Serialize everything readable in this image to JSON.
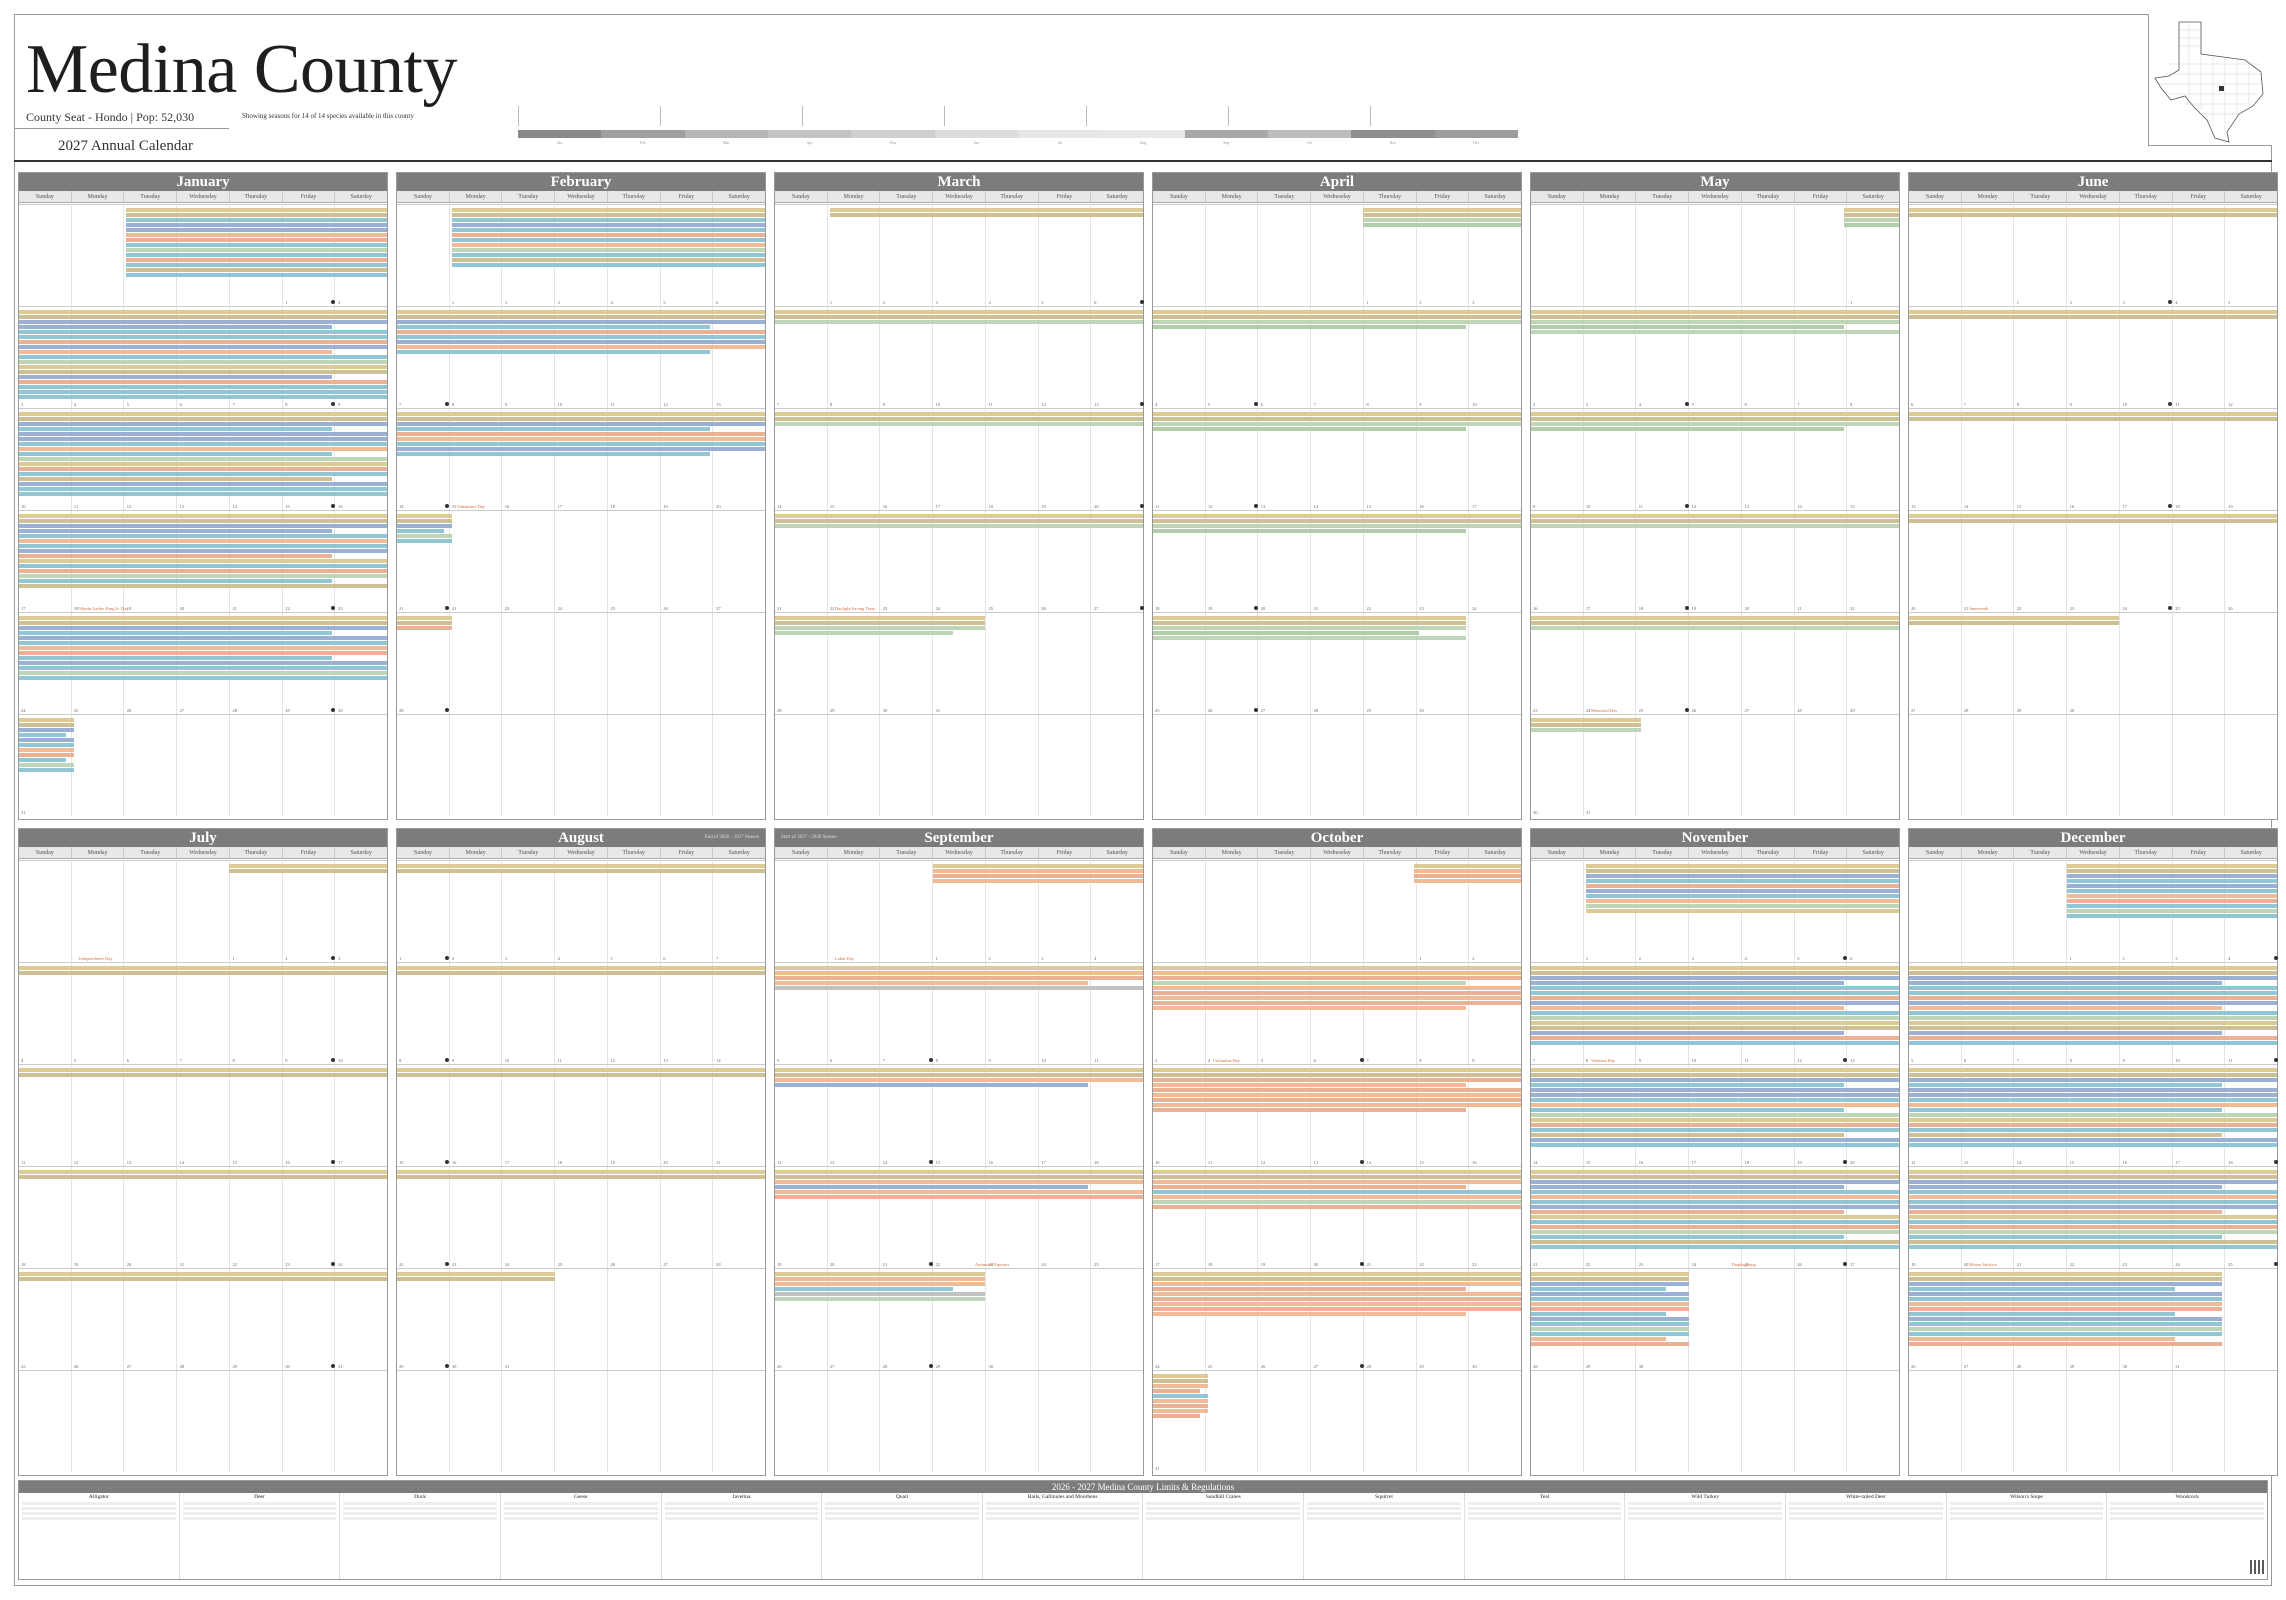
{
  "header": {
    "county": "Medina County",
    "subtitle": "County Seat - Hondo  |  Pop: 52,030",
    "calendar_title": "2027 Annual Calendar",
    "showing": "Showing seasons for 14 of 14 species available in this county"
  },
  "dows": [
    "Sunday",
    "Monday",
    "Tuesday",
    "Wednesday",
    "Thursday",
    "Friday",
    "Saturday"
  ],
  "months": [
    {
      "name": "January",
      "note_right": "",
      "note_left": ""
    },
    {
      "name": "February",
      "note_right": "",
      "note_left": ""
    },
    {
      "name": "March",
      "note_right": "",
      "note_left": ""
    },
    {
      "name": "April",
      "note_right": "",
      "note_left": ""
    },
    {
      "name": "May",
      "note_right": "",
      "note_left": ""
    },
    {
      "name": "June",
      "note_right": "",
      "note_left": ""
    },
    {
      "name": "July",
      "note_right": "",
      "note_left": ""
    },
    {
      "name": "August",
      "note_right": "End of 2026 - 2027 Season",
      "note_left": ""
    },
    {
      "name": "September",
      "note_right": "",
      "note_left": "Start of 2027 - 2028 Season"
    },
    {
      "name": "October",
      "note_right": "",
      "note_left": ""
    },
    {
      "name": "November",
      "note_right": "",
      "note_left": ""
    },
    {
      "name": "December",
      "note_right": "",
      "note_left": ""
    }
  ],
  "holidays": {
    "January": [
      {
        "week": 3,
        "text": "Martin Luther King Jr. Day"
      }
    ],
    "February": [
      {
        "week": 2,
        "text": "Valentine's Day"
      }
    ],
    "March": [
      {
        "week": 3,
        "text": "Daylight Saving Time"
      }
    ],
    "April": [],
    "May": [
      {
        "week": 4,
        "text": "Memorial Day"
      }
    ],
    "June": [
      {
        "week": 3,
        "text": "Juneteenth"
      }
    ],
    "July": [
      {
        "week": 0,
        "text": "Independence Day"
      }
    ],
    "August": [],
    "September": [
      {
        "week": 0,
        "text": "Labor Day"
      },
      {
        "week": 3,
        "text": "Autumnal Equinox"
      }
    ],
    "October": [
      {
        "week": 1,
        "text": "Columbus Day"
      }
    ],
    "November": [
      {
        "week": 1,
        "text": "Veterans Day"
      },
      {
        "week": 3,
        "text": "Thanksgiving"
      }
    ],
    "December": [
      {
        "week": 3,
        "text": "Winter Solstice"
      }
    ]
  },
  "colors": {
    "dove": "#d9c58a",
    "squirrel": "#c9b98a",
    "deer": "#8fa8d0",
    "duck": "#86c0cf",
    "quail": "#e8a88a",
    "turkey": "#b8d0b0",
    "teal": "#f0b48c",
    "gallinule": "#a8c8a0",
    "grey": "#bbbbbb"
  },
  "regulations": {
    "title": "2026 - 2027  Medina County  Limits & Regulations",
    "columns": [
      "Alligator",
      "Deer",
      "Duck",
      "Geese",
      "Javelina",
      "Quail",
      "Rails, Gallinules and Moorhens",
      "Sandhill Cranes",
      "Squirrel",
      "Teal",
      "Wild Turkey",
      "White-tailed Deer",
      "Wilson's Snipe",
      "Woodcock"
    ]
  },
  "timeline_labels": [
    "Jan",
    "Feb",
    "Mar",
    "Apr",
    "May",
    "Jun",
    "Jul",
    "Aug",
    "Sep",
    "Oct",
    "Nov",
    "Dec"
  ]
}
